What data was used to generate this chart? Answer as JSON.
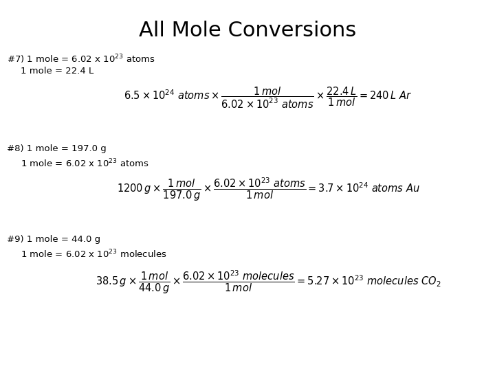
{
  "title": "All Mole Conversions",
  "title_fontsize": 22,
  "bg_color": "#ffffff",
  "text_color": "#000000",
  "fs_info": 9.5,
  "fs_eq": 10.5
}
